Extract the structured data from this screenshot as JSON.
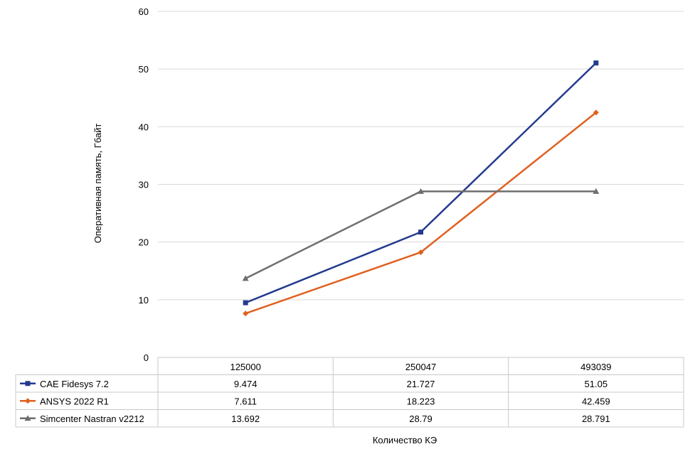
{
  "chart_data": {
    "type": "line",
    "title": "",
    "xlabel": "Количество КЭ",
    "ylabel": "Оперативная память, Гбайт",
    "ylim": [
      0,
      60
    ],
    "yticks": [
      "0",
      "10",
      "20",
      "30",
      "40",
      "50",
      "60"
    ],
    "grid": true,
    "legend": "data-table",
    "categories": [
      "125000",
      "250047",
      "493039"
    ],
    "series": [
      {
        "name": "CAE Fidesys 7.2",
        "color": "#233A8F",
        "marker": "square",
        "values": [
          9.474,
          21.727,
          51.05
        ],
        "labels": [
          "9.474",
          "21.727",
          "51.05"
        ]
      },
      {
        "name": "ANSYS 2022 R1",
        "color": "#E0601F",
        "marker": "diamond",
        "values": [
          7.611,
          18.223,
          42.459
        ],
        "labels": [
          "7.611",
          "18.223",
          "42.459"
        ]
      },
      {
        "name": "Simcenter Nastran v2212",
        "color": "#6E6E6E",
        "marker": "triangle",
        "values": [
          13.692,
          28.79,
          28.791
        ],
        "labels": [
          "13.692",
          "28.79",
          "28.791"
        ]
      }
    ]
  }
}
